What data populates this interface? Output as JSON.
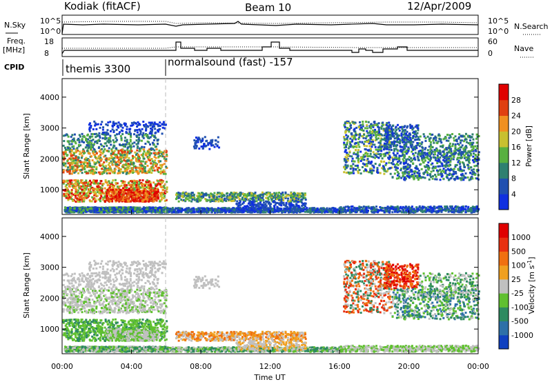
{
  "header": {
    "station": "Kodiak (fitACF)",
    "beam": "Beam 10",
    "date": "12/Apr/2009"
  },
  "strip_labels": {
    "nsky": "N.Sky",
    "nsky_top": "10^5",
    "nsky_bottom": "10^0",
    "nsearch": "N.Search",
    "nsearch_top": "10^5",
    "nsearch_bottom": "10^0",
    "freq": "Freq.",
    "freq_unit": "[MHz]",
    "freq_top": "18",
    "freq_bottom": "8",
    "nave": "Nave",
    "nave_top": "60",
    "nave_bottom": "0",
    "cpid": "CPID"
  },
  "cpid_segments": [
    {
      "label": "themis 3300"
    },
    {
      "label": "normalsound (fast) -157"
    }
  ],
  "chart_data": [
    {
      "type": "heatmap",
      "title": "",
      "ylabel": "Slant Range [km]",
      "xlabel": "",
      "ylim": [
        200,
        4600
      ],
      "y_ticks": [
        "1000",
        "2000",
        "3000",
        "4000"
      ],
      "colorbar_label": "Power [dB]",
      "colorbar_ticks": [
        "4",
        "8",
        "12",
        "16",
        "20",
        "24",
        "28"
      ],
      "colors": [
        "#1030e0",
        "#2050b0",
        "#2e8070",
        "#58b040",
        "#c8c030",
        "#f09020",
        "#e04010",
        "#e00000"
      ]
    },
    {
      "type": "heatmap",
      "title": "",
      "ylabel": "Slant Range [km]",
      "xlabel": "Time UT",
      "ylim": [
        200,
        4600
      ],
      "y_ticks": [
        "1000",
        "2000",
        "3000",
        "4000"
      ],
      "x_ticks": [
        "00:00",
        "04:00",
        "08:00",
        "12:00",
        "16:00",
        "20:00",
        "00:00"
      ],
      "colorbar_label": "Velocity [m s",
      "colorbar_label_sup": "-1",
      "colorbar_label_end": "]",
      "colorbar_ticks": [
        "1000",
        "500",
        "100",
        "25",
        "-25",
        "-100",
        "-500",
        "-1000"
      ],
      "colors": [
        "#1040c0",
        "#2e70a8",
        "#2e8a60",
        "#60c030",
        "#c0c0c0",
        "#f0a020",
        "#f07010",
        "#e83010",
        "#e00000"
      ]
    }
  ]
}
